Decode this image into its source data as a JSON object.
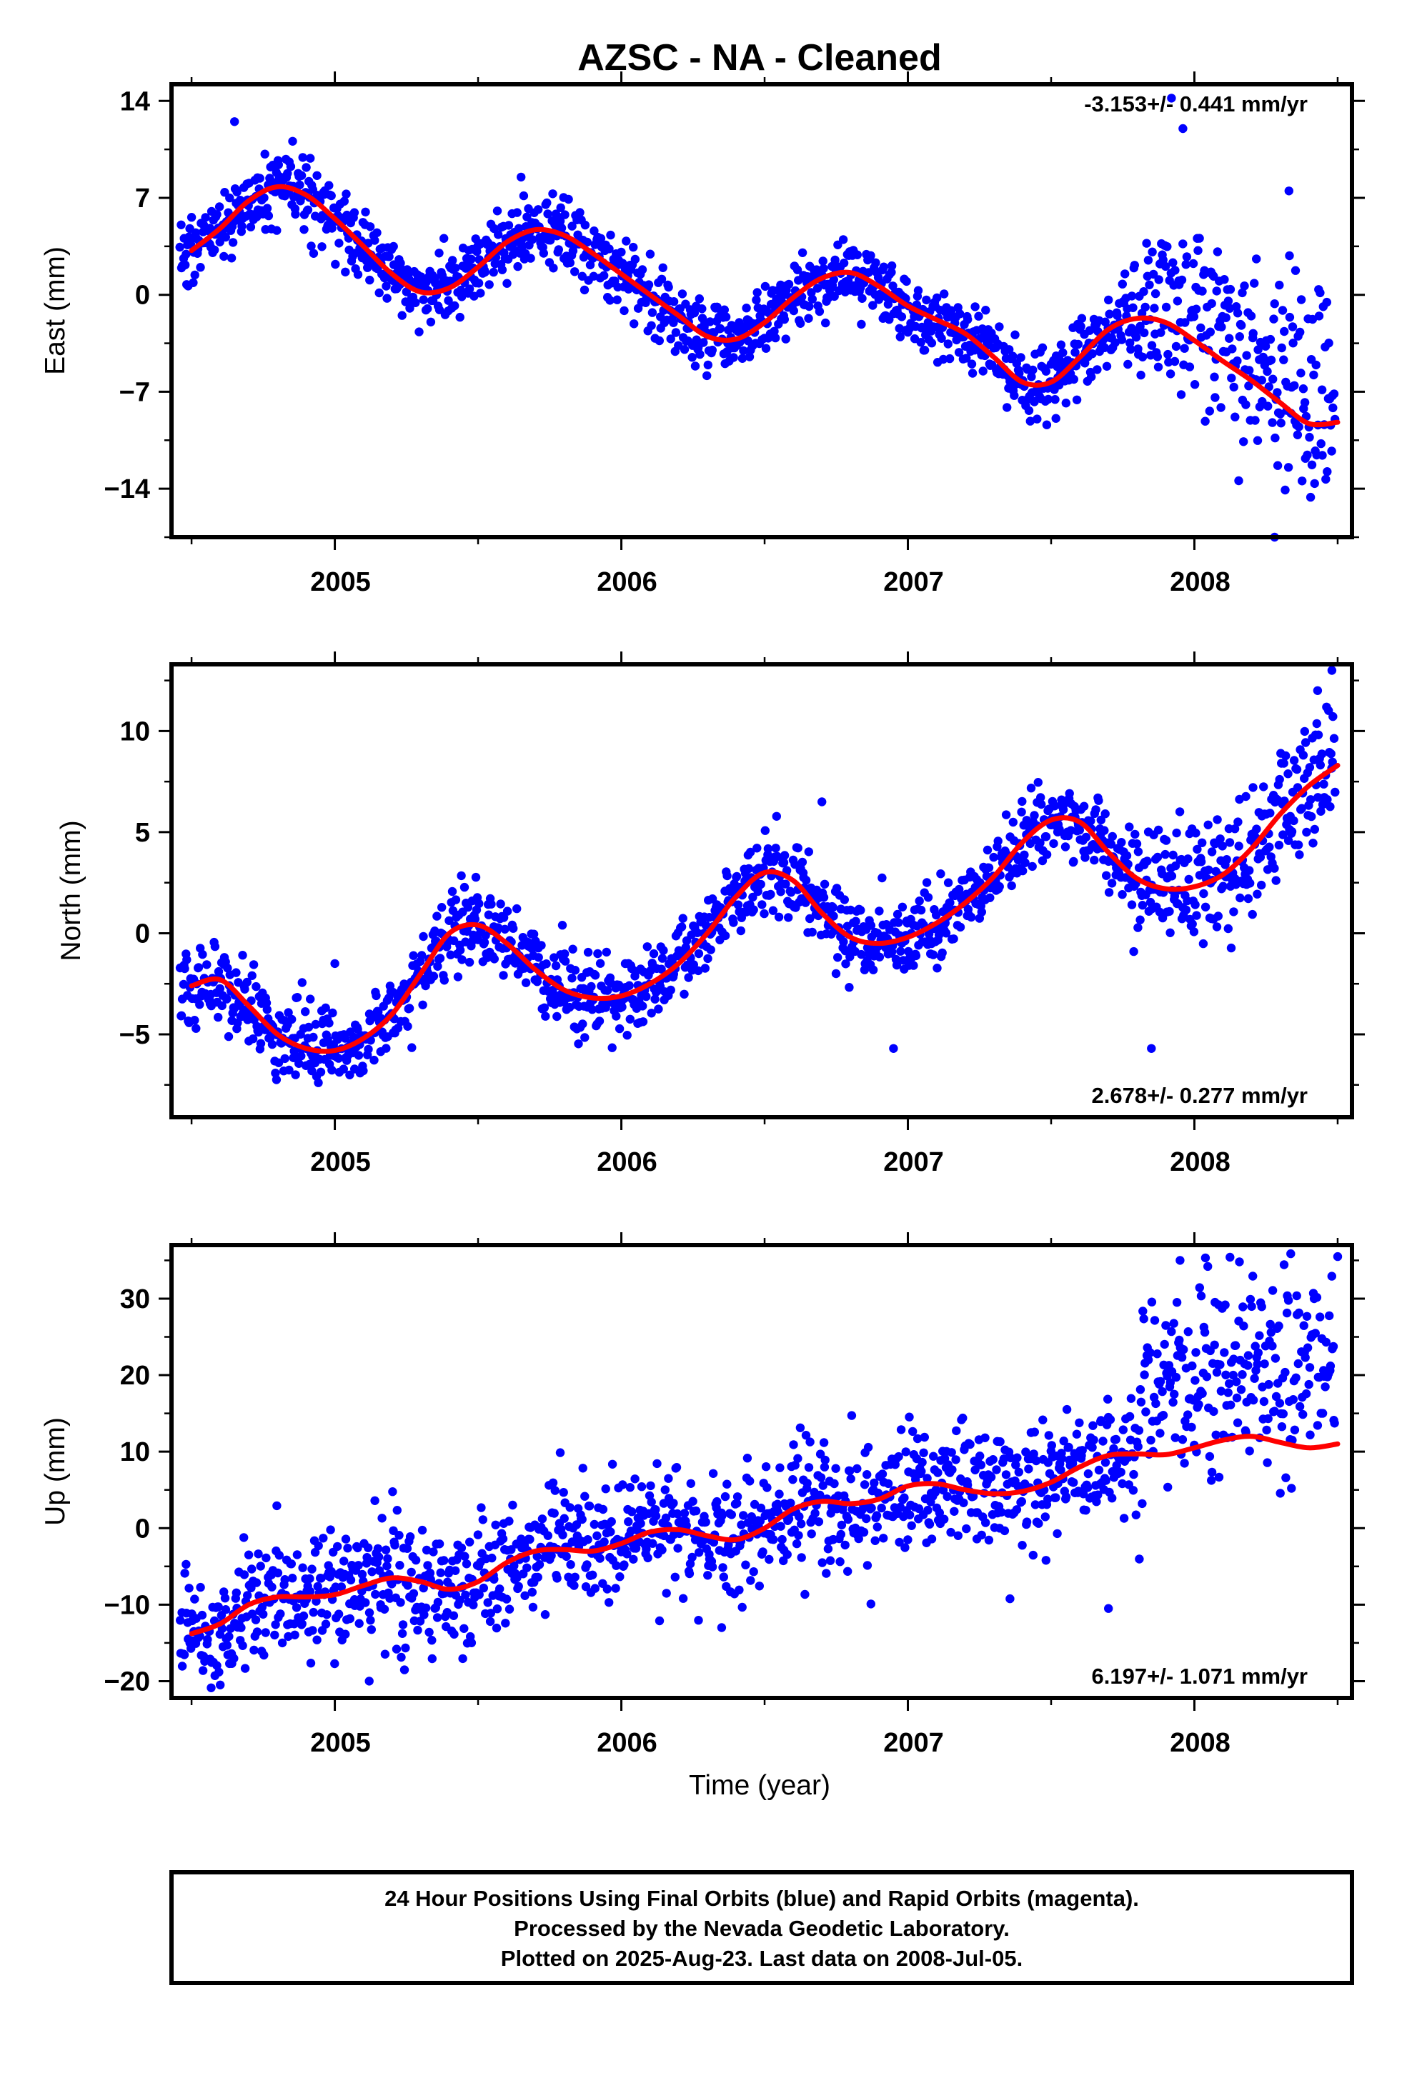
{
  "title": "AZSC  - NA - Cleaned",
  "x_axis_label": "Time (year)",
  "footer": {
    "line1": "24 Hour Positions Using Final Orbits (blue) and Rapid Orbits (magenta).",
    "line2": "Processed by the Nevada Geodetic Laboratory.",
    "line3": "Plotted on 2025-Aug-23. Last data on 2008-Jul-05."
  },
  "colors": {
    "points": "#0000ff",
    "fit": "#ff0000",
    "axes": "#000000"
  },
  "chart_data": [
    {
      "type": "scatter",
      "ylabel": "East (mm)",
      "rate": "-3.153+/- 0.441 mm/yr",
      "rate_position": "top-right",
      "xlim": [
        2004.43,
        2008.55
      ],
      "ylim": [
        -17.5,
        15.2
      ],
      "yticks": [
        14,
        7,
        0,
        -7,
        -14
      ],
      "ytick_labels": [
        "14",
        "7",
        "0",
        "−7",
        "−14"
      ],
      "xticks": [
        2005,
        2006,
        2007,
        2008
      ],
      "xtick_labels": [
        "2005",
        "2006",
        "2007",
        "2008"
      ],
      "fit_curve": {
        "x": [
          2004.5,
          2004.6,
          2004.7,
          2004.8,
          2004.9,
          2005.0,
          2005.1,
          2005.2,
          2005.3,
          2005.4,
          2005.5,
          2005.6,
          2005.7,
          2005.8,
          2005.9,
          2006.0,
          2006.1,
          2006.2,
          2006.3,
          2006.4,
          2006.5,
          2006.6,
          2006.7,
          2006.8,
          2006.9,
          2007.0,
          2007.1,
          2007.2,
          2007.3,
          2007.4,
          2007.5,
          2007.6,
          2007.7,
          2007.8,
          2007.9,
          2008.0,
          2008.1,
          2008.2,
          2008.3,
          2008.4,
          2008.5
        ],
        "y": [
          3.2,
          4.8,
          6.8,
          7.8,
          7.2,
          5.5,
          3.5,
          1.5,
          0.2,
          0.5,
          2.0,
          3.8,
          4.7,
          4.3,
          3.0,
          1.5,
          0.0,
          -1.5,
          -3.0,
          -3.2,
          -2.0,
          -0.2,
          1.2,
          1.6,
          0.6,
          -0.8,
          -1.8,
          -2.8,
          -4.5,
          -6.3,
          -6.3,
          -4.5,
          -2.5,
          -1.7,
          -2.0,
          -3.3,
          -4.8,
          -6.2,
          -7.8,
          -9.3,
          -9.2
        ]
      },
      "scatter_model": {
        "n_points": 1420,
        "noise": [
          [
            2004.43,
            1.3
          ],
          [
            2007.75,
            1.3
          ],
          [
            2007.85,
            3.0
          ],
          [
            2008.55,
            4.0
          ]
        ],
        "outliers": [
          [
            2007.92,
            14.2
          ],
          [
            2007.96,
            12.0
          ],
          [
            2008.28,
            -17.5
          ],
          [
            2008.33,
            7.5
          ],
          [
            2005.65,
            8.5
          ],
          [
            2004.65,
            12.5
          ]
        ]
      }
    },
    {
      "type": "scatter",
      "ylabel": "North (mm)",
      "rate": "2.678+/- 0.277 mm/yr",
      "rate_position": "bottom-right",
      "xlim": [
        2004.43,
        2008.55
      ],
      "ylim": [
        -9.1,
        13.3
      ],
      "yticks": [
        10,
        5,
        0,
        -5
      ],
      "ytick_labels": [
        "10",
        "5",
        "0",
        "−5"
      ],
      "xticks": [
        2005,
        2006,
        2007,
        2008
      ],
      "xtick_labels": [
        "2005",
        "2006",
        "2007",
        "2008"
      ],
      "fit_curve": {
        "x": [
          2004.5,
          2004.6,
          2004.7,
          2004.8,
          2004.9,
          2005.0,
          2005.1,
          2005.2,
          2005.3,
          2005.4,
          2005.5,
          2005.6,
          2005.7,
          2005.8,
          2005.9,
          2006.0,
          2006.1,
          2006.2,
          2006.3,
          2006.4,
          2006.5,
          2006.6,
          2006.7,
          2006.8,
          2006.9,
          2007.0,
          2007.1,
          2007.2,
          2007.3,
          2007.4,
          2007.5,
          2007.6,
          2007.7,
          2007.8,
          2007.9,
          2008.0,
          2008.1,
          2008.2,
          2008.3,
          2008.4,
          2008.5
        ],
        "y": [
          -2.6,
          -2.3,
          -3.6,
          -5.0,
          -5.7,
          -5.8,
          -5.2,
          -4.0,
          -2.0,
          0.0,
          0.4,
          -0.5,
          -1.8,
          -2.8,
          -3.2,
          -3.1,
          -2.5,
          -1.5,
          0.0,
          1.8,
          3.0,
          2.6,
          1.0,
          -0.2,
          -0.5,
          -0.2,
          0.5,
          1.5,
          2.8,
          4.5,
          5.6,
          5.5,
          4.0,
          2.7,
          2.2,
          2.3,
          2.9,
          4.2,
          5.9,
          7.3,
          8.3
        ]
      },
      "scatter_model": {
        "n_points": 1430,
        "noise": [
          [
            2004.43,
            1.0
          ],
          [
            2007.7,
            1.0
          ],
          [
            2007.85,
            1.5
          ],
          [
            2008.55,
            1.5
          ]
        ],
        "outliers": [
          [
            2008.48,
            13.0
          ],
          [
            2008.43,
            12.0
          ],
          [
            2007.85,
            -5.7
          ],
          [
            2006.95,
            -5.7
          ],
          [
            2005.0,
            -1.5
          ],
          [
            2006.7,
            6.5
          ]
        ]
      }
    },
    {
      "type": "scatter",
      "ylabel": "Up (mm)",
      "rate": "6.197+/- 1.071 mm/yr",
      "rate_position": "bottom-right",
      "xlim": [
        2004.43,
        2008.55
      ],
      "ylim": [
        -22.2,
        37.0
      ],
      "yticks": [
        30,
        20,
        10,
        0,
        -10,
        -20
      ],
      "ytick_labels": [
        "30",
        "20",
        "10",
        "0",
        "−10",
        "−20"
      ],
      "xticks": [
        2005,
        2006,
        2007,
        2008
      ],
      "xtick_labels": [
        "2005",
        "2006",
        "2007",
        "2008"
      ],
      "fit_curve": {
        "x": [
          2004.5,
          2004.6,
          2004.7,
          2004.8,
          2004.9,
          2005.0,
          2005.1,
          2005.2,
          2005.3,
          2005.4,
          2005.5,
          2005.6,
          2005.7,
          2005.8,
          2005.9,
          2006.0,
          2006.1,
          2006.2,
          2006.3,
          2006.4,
          2006.5,
          2006.6,
          2006.7,
          2006.8,
          2006.9,
          2007.0,
          2007.1,
          2007.2,
          2007.3,
          2007.4,
          2007.5,
          2007.6,
          2007.7,
          2007.8,
          2007.9,
          2008.0,
          2008.1,
          2008.2,
          2008.3,
          2008.4,
          2008.5
        ],
        "y": [
          -13.8,
          -12.5,
          -10.0,
          -9.0,
          -9.0,
          -8.7,
          -7.5,
          -6.5,
          -7.0,
          -8.0,
          -7.0,
          -4.5,
          -3.0,
          -2.8,
          -3.0,
          -2.0,
          -0.5,
          -0.2,
          -1.0,
          -1.5,
          0.0,
          2.5,
          3.5,
          3.2,
          3.8,
          5.5,
          5.8,
          5.0,
          4.5,
          4.8,
          6.0,
          8.0,
          9.5,
          9.7,
          9.6,
          10.5,
          11.5,
          12.0,
          11.2,
          10.5,
          11.0
        ]
      },
      "scatter_model": {
        "n_points": 1420,
        "noise": [
          [
            2004.43,
            4.0
          ],
          [
            2007.75,
            4.0
          ],
          [
            2007.85,
            7.0
          ],
          [
            2008.55,
            7.0
          ]
        ],
        "outliers": [
          [
            2007.95,
            35.0
          ],
          [
            2008.5,
            35.5
          ],
          [
            2007.7,
            -10.5
          ],
          [
            2004.6,
            -20.5
          ],
          [
            2005.12,
            -20.0
          ],
          [
            2006.35,
            -13.0
          ]
        ]
      }
    }
  ]
}
